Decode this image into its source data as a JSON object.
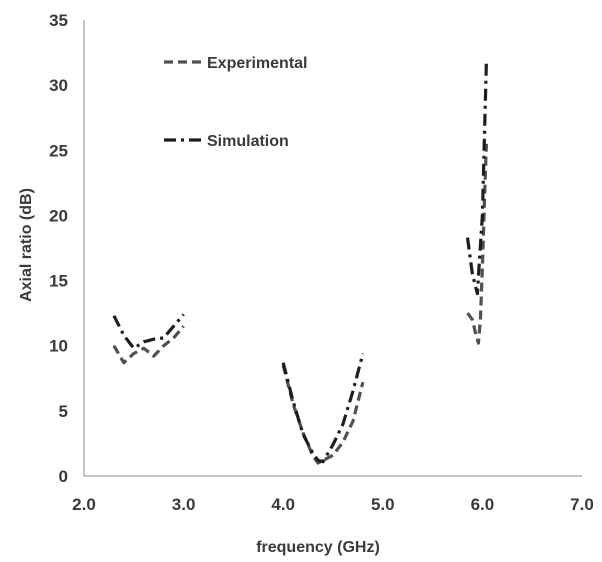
{
  "chart_data": {
    "type": "line",
    "title": "",
    "xlabel": "frequency (GHz)",
    "ylabel": "Axial ratio (dB)",
    "xlim": [
      2.0,
      7.0
    ],
    "ylim": [
      0,
      35
    ],
    "x_ticks": [
      "2.0",
      "3.0",
      "4.0",
      "5.0",
      "6.0",
      "7.0"
    ],
    "y_ticks": [
      "0",
      "5",
      "10",
      "15",
      "20",
      "25",
      "30",
      "35"
    ],
    "grid": false,
    "legend_position": "top-left",
    "series": [
      {
        "name": "Experimental",
        "style": "dashed",
        "color": "#505050",
        "segments": [
          [
            [
              2.3,
              10.0
            ],
            [
              2.4,
              8.7
            ],
            [
              2.5,
              9.4
            ],
            [
              2.6,
              9.8
            ],
            [
              2.7,
              9.2
            ],
            [
              2.8,
              10.0
            ],
            [
              2.9,
              10.6
            ],
            [
              3.0,
              11.5
            ]
          ],
          [
            [
              4.0,
              8.5
            ],
            [
              4.1,
              5.5
            ],
            [
              4.2,
              3.3
            ],
            [
              4.3,
              1.5
            ],
            [
              4.35,
              1.0
            ],
            [
              4.4,
              1.2
            ],
            [
              4.5,
              1.6
            ],
            [
              4.6,
              2.6
            ],
            [
              4.7,
              4.2
            ],
            [
              4.8,
              7.2
            ]
          ],
          [
            [
              5.85,
              12.5
            ],
            [
              5.9,
              12.0
            ],
            [
              5.93,
              11.0
            ],
            [
              5.96,
              10.2
            ],
            [
              5.98,
              12.0
            ],
            [
              6.0,
              16.0
            ],
            [
              6.02,
              21.0
            ],
            [
              6.04,
              25.5
            ]
          ]
        ]
      },
      {
        "name": "Simulation",
        "style": "dash-dot",
        "color": "#1e1e1e",
        "segments": [
          [
            [
              2.3,
              12.3
            ],
            [
              2.4,
              10.8
            ],
            [
              2.5,
              9.8
            ],
            [
              2.6,
              10.3
            ],
            [
              2.7,
              10.5
            ],
            [
              2.8,
              10.6
            ],
            [
              2.9,
              11.5
            ],
            [
              3.0,
              12.4
            ]
          ],
          [
            [
              4.0,
              8.7
            ],
            [
              4.1,
              5.7
            ],
            [
              4.2,
              3.2
            ],
            [
              4.3,
              1.7
            ],
            [
              4.35,
              1.2
            ],
            [
              4.4,
              1.1
            ],
            [
              4.5,
              2.4
            ],
            [
              4.6,
              4.0
            ],
            [
              4.7,
              6.5
            ],
            [
              4.8,
              9.4
            ]
          ],
          [
            [
              5.85,
              18.3
            ],
            [
              5.9,
              15.5
            ],
            [
              5.95,
              14.0
            ],
            [
              5.97,
              16.5
            ],
            [
              6.0,
              20.0
            ],
            [
              6.02,
              26.0
            ],
            [
              6.04,
              31.8
            ]
          ]
        ]
      }
    ]
  }
}
